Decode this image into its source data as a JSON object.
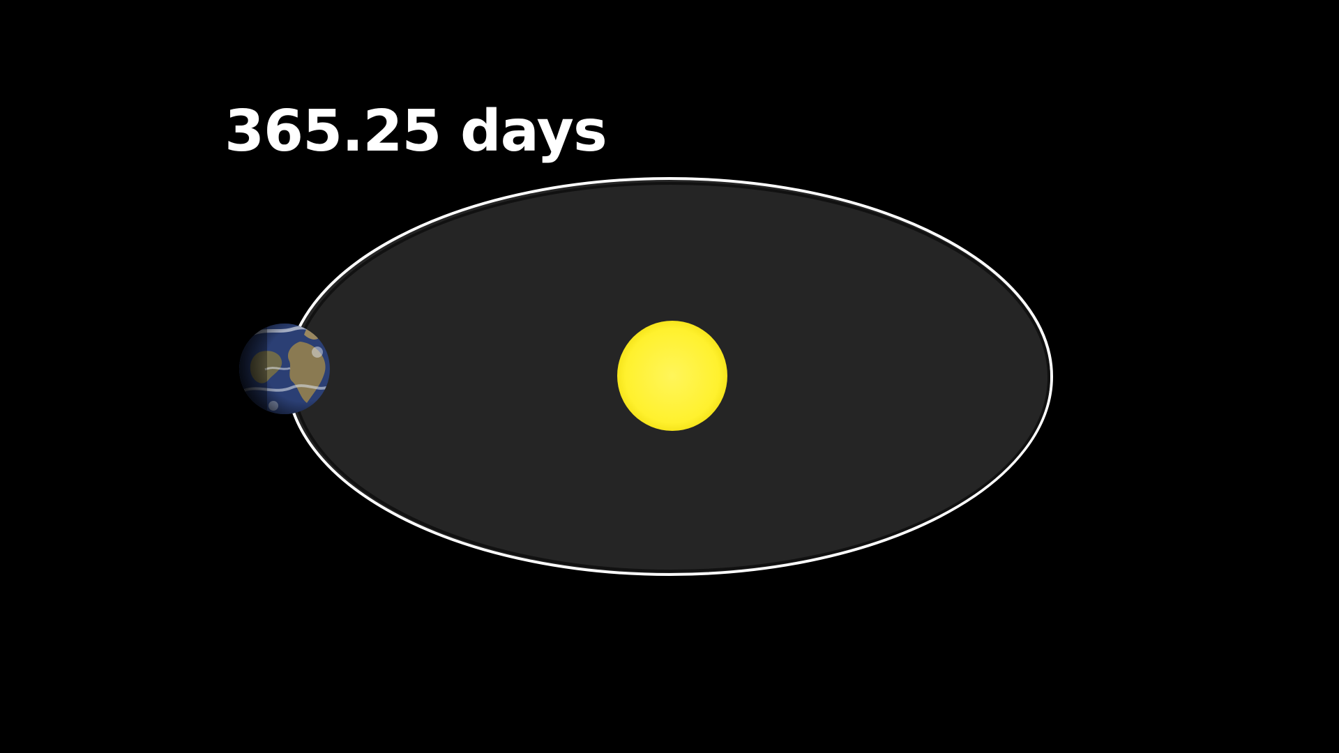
{
  "orbit": {
    "period_label": "365.25 days"
  },
  "colors": {
    "background": "#000000",
    "orbit_fill": "#252525",
    "orbit_stroke": "#ffffff",
    "sun": "#fff12e",
    "earth_ocean": "#2b3f74",
    "earth_land": "#8a7a52",
    "earth_cloud": "#d8dde6"
  },
  "icons": {
    "sun": "sun-icon",
    "earth": "earth-icon"
  }
}
